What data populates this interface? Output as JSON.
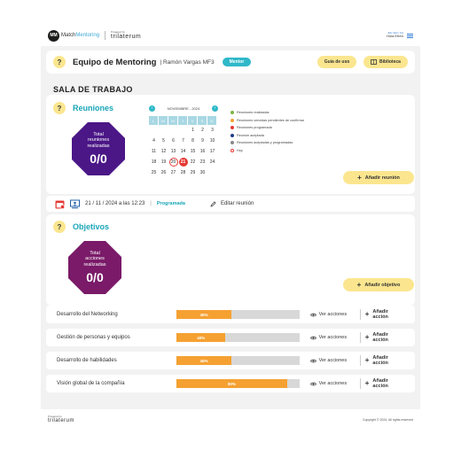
{
  "header": {
    "logo_initials": "MM",
    "logo_prefix": "Match",
    "logo_suffix": "Mentoring",
    "powered_by": "Powered by",
    "brand": "trilaterum",
    "languages": "ES | EN | CA",
    "greeting": "Hola Efrén"
  },
  "mentoring": {
    "title": "Equipo de Mentoring",
    "subtitle": "| Ramón Vargas MF3",
    "role": "Mentor",
    "guide_label": "Guía de uso",
    "library_label": "Biblioteca"
  },
  "workspace_title": "SALA DE TRABAJO",
  "reuniones": {
    "title": "Reuniones",
    "total_label_1": "Total",
    "total_label_2": "reuniones",
    "total_label_3": "realizadas",
    "total_value": "0/0",
    "add_label": "Añadir reunión",
    "calendar": {
      "month": "NOVIEMBRE - 2024",
      "prev": "‹",
      "next": "›",
      "weekdays": [
        "L",
        "M",
        "M",
        "J",
        "V",
        "S",
        "D"
      ],
      "weeks": [
        [
          "",
          "",
          "",
          "",
          "1",
          "2",
          "3"
        ],
        [
          "4",
          "5",
          "6",
          "7",
          "8",
          "9",
          "10"
        ],
        [
          "11",
          "12",
          "13",
          "14",
          "15",
          "16",
          "17"
        ],
        [
          "18",
          "19",
          "20",
          "21",
          "22",
          "23",
          "24"
        ],
        [
          "25",
          "26",
          "27",
          "28",
          "29",
          "30",
          ""
        ]
      ],
      "today": "20",
      "scheduled": "21"
    },
    "legend": [
      {
        "label": "Reuniones realizadas",
        "color": "#7cb342"
      },
      {
        "label": "Reuniones vencidas pendientes de confirmar",
        "color": "#f5a132"
      },
      {
        "label": "Reuniones programada",
        "color": "#e53935"
      },
      {
        "label": "Reunión aceptada",
        "color": "#1e3a8a"
      },
      {
        "label": "Reuniones aceptadas y programadas",
        "color": "#888888"
      },
      {
        "label": "Hoy",
        "color": "hollow"
      }
    ]
  },
  "meeting": {
    "date": "21 / 11 / 2024 a las 12:23",
    "separator": "|",
    "status": "Programada",
    "edit_label": "Editar reunión"
  },
  "objetivos": {
    "title": "Objetivos",
    "total_label_1": "Total",
    "total_label_2": "acciones",
    "total_label_3": "realizadas",
    "total_value": "0/0",
    "add_label": "Añadir objetivo",
    "view_label": "Ver acciones",
    "add_action_label": "Añadir acción",
    "goals": [
      {
        "name": "Desarrollo del Networking",
        "percent_label": "45%",
        "progress": 0.45
      },
      {
        "name": "Gestión de personas y equipos",
        "percent_label": "40%",
        "progress": 0.4
      },
      {
        "name": "Desarrollo de habilidades",
        "percent_label": "45%",
        "progress": 0.45
      },
      {
        "name": "Visión global de la compañía",
        "percent_label": "90%",
        "progress": 0.9
      }
    ]
  },
  "footer": {
    "powered_by": "Powered by",
    "brand": "trilaterum",
    "copyright": "Copyright © 2024. All rights reserved"
  },
  "colors": {
    "accent": "#1aa6b7",
    "yellow": "#fbe68f",
    "meetings_octagon": "#4b1787",
    "objectives_octagon": "#7a1a68",
    "progress": "#f5a132"
  }
}
